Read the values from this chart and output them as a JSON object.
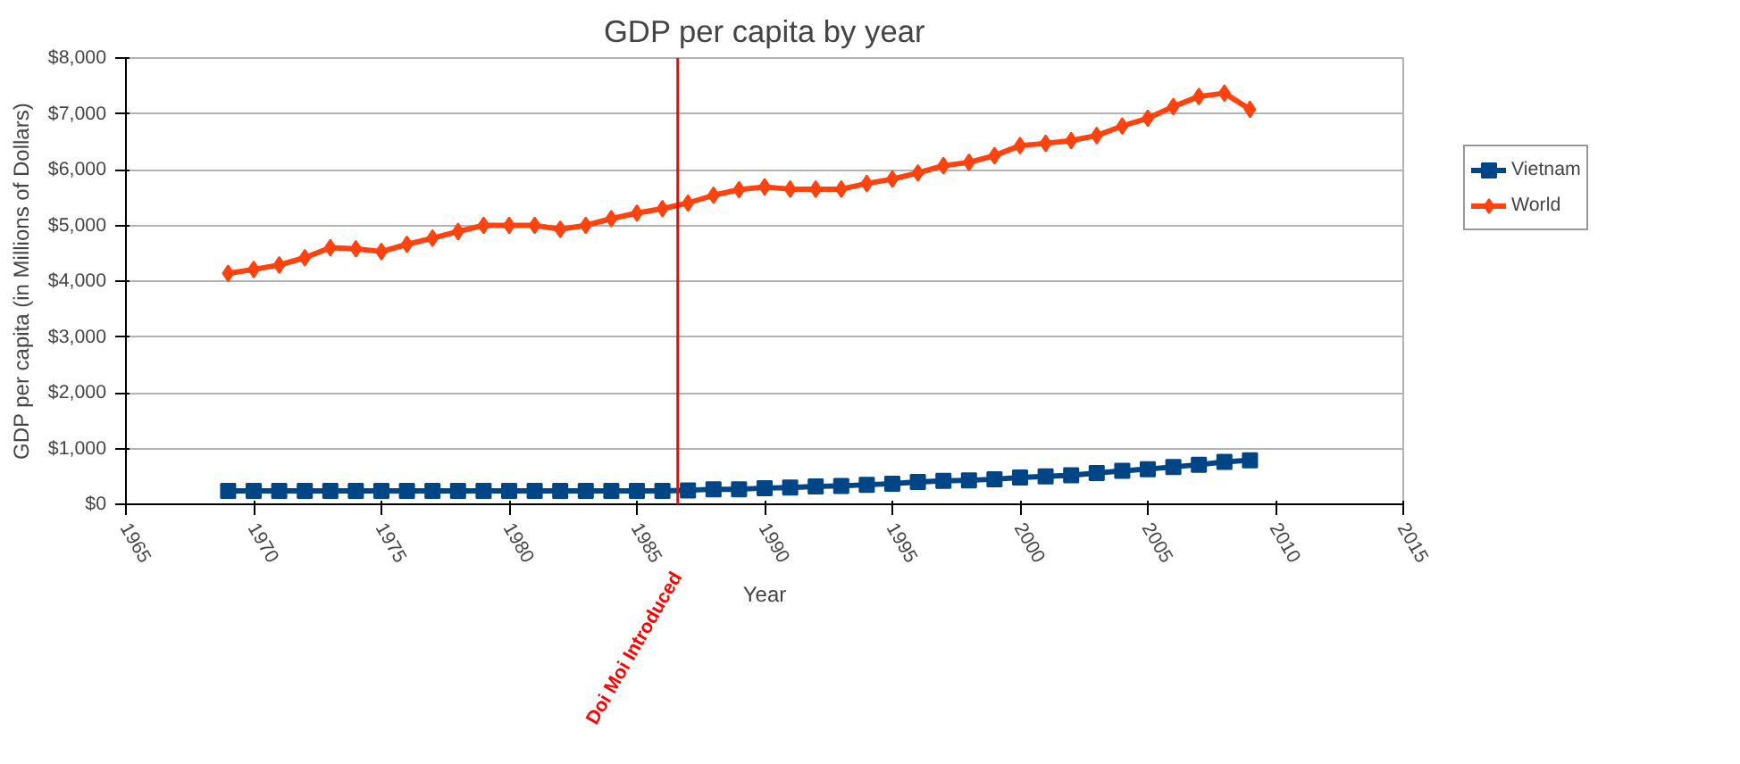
{
  "chart_data": {
    "type": "line",
    "title": "GDP per capita by year",
    "xlabel": "Year",
    "ylabel": "GDP per capita (in Millions of Dollars)",
    "x": [
      1969,
      1970,
      1971,
      1972,
      1973,
      1974,
      1975,
      1976,
      1977,
      1978,
      1979,
      1980,
      1981,
      1982,
      1983,
      1984,
      1985,
      1986,
      1987,
      1988,
      1989,
      1990,
      1991,
      1992,
      1993,
      1994,
      1995,
      1996,
      1997,
      1998,
      1999,
      2000,
      2001,
      2002,
      2003,
      2004,
      2005,
      2006,
      2007,
      2008,
      2009
    ],
    "series": [
      {
        "name": "Vietnam",
        "color": "#004586",
        "marker": "square",
        "values": [
          240,
          240,
          240,
          240,
          240,
          240,
          240,
          240,
          240,
          240,
          240,
          240,
          240,
          240,
          240,
          240,
          240,
          240,
          250,
          270,
          270,
          290,
          300,
          320,
          330,
          350,
          370,
          400,
          420,
          430,
          450,
          480,
          500,
          520,
          560,
          600,
          630,
          670,
          710,
          760,
          790
        ]
      },
      {
        "name": "World",
        "color": "#ff420e",
        "marker": "diamond",
        "values": [
          4140,
          4210,
          4290,
          4420,
          4600,
          4580,
          4530,
          4660,
          4770,
          4890,
          5000,
          5000,
          5000,
          4930,
          5000,
          5120,
          5220,
          5300,
          5400,
          5540,
          5640,
          5690,
          5650,
          5650,
          5650,
          5750,
          5830,
          5940,
          6070,
          6130,
          6250,
          6430,
          6470,
          6520,
          6610,
          6780,
          6920,
          7130,
          7310,
          7370,
          7080
        ]
      }
    ],
    "xlim": [
      1965,
      2015
    ],
    "xticks": [
      1965,
      1970,
      1975,
      1980,
      1985,
      1990,
      1995,
      2000,
      2005,
      2010,
      2015
    ],
    "ylim": [
      0,
      8000
    ],
    "yticks": [
      {
        "value": 0,
        "label": "$0"
      },
      {
        "value": 1000,
        "label": "$1,000"
      },
      {
        "value": 2000,
        "label": "$2,000"
      },
      {
        "value": 3000,
        "label": "$3,000"
      },
      {
        "value": 4000,
        "label": "$4,000"
      },
      {
        "value": 5000,
        "label": "$5,000"
      },
      {
        "value": 6000,
        "label": "$6,000"
      },
      {
        "value": 7000,
        "label": "$7,000"
      },
      {
        "value": 8000,
        "label": "$8,000"
      }
    ],
    "ref_lines": [
      {
        "axis": "x",
        "value": 1986.6,
        "label": "Doi Moi Introduced",
        "color": "#ff0000"
      }
    ],
    "grid": "y",
    "legend": "right"
  }
}
